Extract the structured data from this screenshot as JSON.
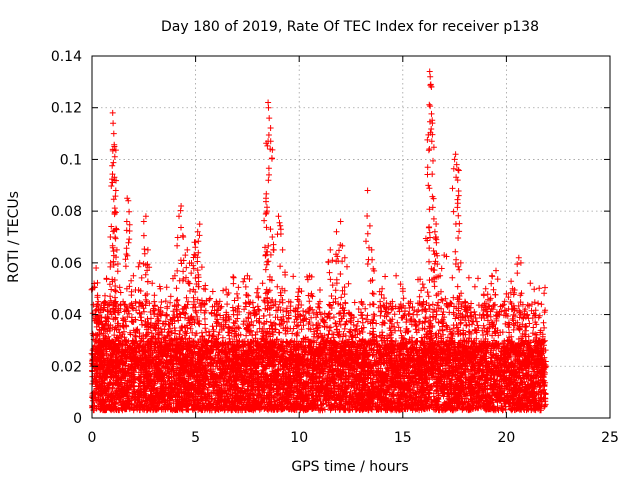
{
  "chart_data": {
    "type": "scatter",
    "title": "Day 180 of 2019, Rate Of TEC Index for receiver p138",
    "xlabel": "GPS time / hours",
    "ylabel": "ROTI / TECUs",
    "xlim": [
      0,
      25
    ],
    "ylim": [
      0,
      0.14
    ],
    "x_ticks": [
      "0",
      "5",
      "10",
      "15",
      "20",
      "25"
    ],
    "y_ticks": [
      "0",
      "0.02",
      "0.04",
      "0.06",
      "0.08",
      "0.1",
      "0.12",
      "0.14"
    ],
    "x_tick_values": [
      0,
      5,
      10,
      15,
      20,
      25
    ],
    "y_tick_values": [
      0,
      0.02,
      0.04,
      0.06,
      0.08,
      0.1,
      0.12,
      0.14
    ],
    "grid": true,
    "marker": "+",
    "color": "#ff0000",
    "series": [
      {
        "name": "ROTI",
        "points": [
          [
            0.1,
            0.052
          ],
          [
            0.2,
            0.058
          ],
          [
            0.3,
            0.045
          ],
          [
            0.5,
            0.035
          ],
          [
            0.7,
            0.054
          ],
          [
            0.9,
            0.06
          ],
          [
            1.0,
            0.118
          ],
          [
            1.02,
            0.114
          ],
          [
            1.05,
            0.11
          ],
          [
            1.08,
            0.105
          ],
          [
            1.1,
            0.101
          ],
          [
            1.15,
            0.088
          ],
          [
            1.2,
            0.065
          ],
          [
            1.5,
            0.045
          ],
          [
            1.7,
            0.085
          ],
          [
            1.75,
            0.084
          ],
          [
            2.0,
            0.055
          ],
          [
            2.3,
            0.06
          ],
          [
            2.5,
            0.076
          ],
          [
            2.6,
            0.078
          ],
          [
            2.7,
            0.065
          ],
          [
            3.0,
            0.045
          ],
          [
            3.3,
            0.05
          ],
          [
            3.6,
            0.04
          ],
          [
            4.0,
            0.055
          ],
          [
            4.2,
            0.078
          ],
          [
            4.3,
            0.082
          ],
          [
            4.4,
            0.07
          ],
          [
            4.6,
            0.065
          ],
          [
            4.8,
            0.06
          ],
          [
            5.0,
            0.068
          ],
          [
            5.1,
            0.072
          ],
          [
            5.2,
            0.075
          ],
          [
            5.4,
            0.05
          ],
          [
            6.0,
            0.045
          ],
          [
            6.5,
            0.04
          ],
          [
            7.0,
            0.048
          ],
          [
            7.5,
            0.055
          ],
          [
            8.0,
            0.05
          ],
          [
            8.4,
            0.085
          ],
          [
            8.45,
            0.08
          ],
          [
            8.5,
            0.122
          ],
          [
            8.52,
            0.12
          ],
          [
            8.55,
            0.116
          ],
          [
            8.6,
            0.104
          ],
          [
            8.7,
            0.07
          ],
          [
            9.0,
            0.078
          ],
          [
            9.2,
            0.065
          ],
          [
            9.5,
            0.045
          ],
          [
            10.0,
            0.05
          ],
          [
            10.5,
            0.055
          ],
          [
            11.0,
            0.045
          ],
          [
            11.5,
            0.065
          ],
          [
            11.8,
            0.072
          ],
          [
            12.0,
            0.076
          ],
          [
            12.2,
            0.062
          ],
          [
            12.5,
            0.04
          ],
          [
            13.0,
            0.045
          ],
          [
            13.3,
            0.088
          ],
          [
            13.5,
            0.065
          ],
          [
            14.0,
            0.05
          ],
          [
            14.5,
            0.045
          ],
          [
            15.0,
            0.05
          ],
          [
            15.5,
            0.04
          ],
          [
            16.0,
            0.045
          ],
          [
            16.2,
            0.097
          ],
          [
            16.3,
            0.134
          ],
          [
            16.32,
            0.132
          ],
          [
            16.35,
            0.129
          ],
          [
            16.38,
            0.128
          ],
          [
            16.4,
            0.107
          ],
          [
            16.5,
            0.077
          ],
          [
            16.55,
            0.072
          ],
          [
            16.6,
            0.07
          ],
          [
            16.8,
            0.055
          ],
          [
            17.0,
            0.063
          ],
          [
            17.5,
            0.1
          ],
          [
            17.55,
            0.102
          ],
          [
            17.6,
            0.098
          ],
          [
            17.65,
            0.092
          ],
          [
            17.7,
            0.086
          ],
          [
            17.8,
            0.06
          ],
          [
            18.0,
            0.045
          ],
          [
            18.5,
            0.04
          ],
          [
            19.0,
            0.05
          ],
          [
            19.3,
            0.055
          ],
          [
            19.5,
            0.057
          ],
          [
            20.0,
            0.048
          ],
          [
            20.3,
            0.05
          ],
          [
            20.6,
            0.062
          ],
          [
            20.7,
            0.06
          ],
          [
            21.0,
            0.04
          ],
          [
            21.3,
            0.035
          ],
          [
            21.6,
            0.03
          ],
          [
            21.8,
            0.02
          ]
        ],
        "dense_band": {
          "x_range": [
            0,
            21.9
          ],
          "baseline_min": 0.003,
          "baseline_max": 0.03,
          "typical_max": 0.045,
          "count": 9000
        }
      }
    ]
  }
}
